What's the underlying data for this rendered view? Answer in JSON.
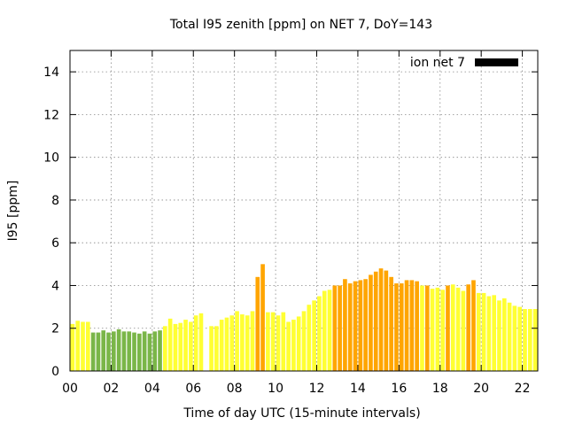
{
  "chart_data": {
    "type": "bar",
    "title": "Total I95 zenith [ppm] on NET 7, DoY=143",
    "xlabel": "Time of day UTC (15-minute intervals)",
    "ylabel": "I95 [ppm]",
    "xlim": [
      0,
      22.75
    ],
    "ylim": [
      0,
      15
    ],
    "x_ticks": [
      0,
      2,
      4,
      6,
      8,
      10,
      12,
      14,
      16,
      18,
      20,
      22
    ],
    "x_tick_labels": [
      "00",
      "02",
      "04",
      "06",
      "08",
      "10",
      "12",
      "14",
      "16",
      "18",
      "20",
      "22"
    ],
    "y_ticks": [
      0,
      2,
      4,
      6,
      8,
      10,
      12,
      14
    ],
    "y_tick_labels": [
      "0",
      "2",
      "4",
      "6",
      "8",
      "10",
      "12",
      "14"
    ],
    "grid": true,
    "legend": {
      "placement": "top-right",
      "entries": [
        {
          "label": "ion net 7",
          "color": "#000000"
        }
      ]
    },
    "bar_interval_hours": 0.25,
    "colors": {
      "green": "#7ab648",
      "yellow": "#ffff33",
      "orange": "#ffa500"
    },
    "series": [
      {
        "name": "ion net 7",
        "x": [
          0.0,
          0.25,
          0.5,
          0.75,
          1.0,
          1.25,
          1.5,
          1.75,
          2.0,
          2.25,
          2.5,
          2.75,
          3.0,
          3.25,
          3.5,
          3.75,
          4.0,
          4.25,
          4.5,
          4.75,
          5.0,
          5.25,
          5.5,
          5.75,
          6.0,
          6.25,
          6.75,
          7.0,
          7.25,
          7.5,
          7.75,
          8.0,
          8.25,
          8.5,
          8.75,
          9.0,
          9.25,
          9.5,
          9.75,
          10.0,
          10.25,
          10.5,
          10.75,
          11.0,
          11.25,
          11.5,
          11.75,
          12.0,
          12.25,
          12.5,
          12.75,
          13.0,
          13.25,
          13.5,
          13.75,
          14.0,
          14.25,
          14.5,
          14.75,
          15.0,
          15.25,
          15.5,
          15.75,
          16.0,
          16.25,
          16.5,
          16.75,
          17.0,
          17.25,
          17.5,
          17.75,
          18.0,
          18.25,
          18.5,
          18.75,
          19.0,
          19.25,
          19.5,
          19.75,
          20.0,
          20.25,
          20.5,
          20.75,
          21.0,
          21.25,
          21.5,
          21.75,
          22.0,
          22.25,
          22.5
        ],
        "values": [
          2.2,
          2.35,
          2.3,
          2.3,
          1.8,
          1.8,
          1.9,
          1.8,
          1.85,
          1.95,
          1.85,
          1.85,
          1.8,
          1.75,
          1.85,
          1.75,
          1.85,
          1.9,
          2.1,
          2.45,
          2.2,
          2.25,
          2.4,
          2.3,
          2.6,
          2.7,
          2.1,
          2.1,
          2.4,
          2.5,
          2.6,
          2.8,
          2.65,
          2.6,
          2.8,
          4.4,
          5.0,
          2.75,
          2.75,
          2.6,
          2.75,
          2.3,
          2.4,
          2.55,
          2.8,
          3.1,
          3.3,
          3.5,
          3.75,
          3.8,
          4.0,
          4.0,
          4.3,
          4.1,
          4.2,
          4.25,
          4.3,
          4.5,
          4.65,
          4.8,
          4.7,
          4.4,
          4.1,
          4.1,
          4.25,
          4.25,
          4.2,
          4.0,
          4.0,
          3.85,
          3.9,
          3.8,
          4.0,
          4.05,
          3.9,
          3.75,
          4.05,
          4.25,
          3.65,
          3.65,
          3.5,
          3.55,
          3.3,
          3.4,
          3.2,
          3.05,
          3.0,
          2.9,
          2.9,
          2.9
        ],
        "colors": [
          "yellow",
          "yellow",
          "yellow",
          "yellow",
          "green",
          "green",
          "green",
          "green",
          "green",
          "green",
          "green",
          "green",
          "green",
          "green",
          "green",
          "green",
          "green",
          "green",
          "yellow",
          "yellow",
          "yellow",
          "yellow",
          "yellow",
          "yellow",
          "yellow",
          "yellow",
          "yellow",
          "yellow",
          "yellow",
          "yellow",
          "yellow",
          "yellow",
          "yellow",
          "yellow",
          "yellow",
          "orange",
          "orange",
          "yellow",
          "yellow",
          "yellow",
          "yellow",
          "yellow",
          "yellow",
          "yellow",
          "yellow",
          "yellow",
          "yellow",
          "yellow",
          "yellow",
          "yellow",
          "orange",
          "orange",
          "orange",
          "orange",
          "orange",
          "orange",
          "orange",
          "orange",
          "orange",
          "orange",
          "orange",
          "orange",
          "orange",
          "orange",
          "orange",
          "orange",
          "orange",
          "yellow",
          "orange",
          "yellow",
          "yellow",
          "yellow",
          "orange",
          "yellow",
          "yellow",
          "yellow",
          "orange",
          "orange",
          "yellow",
          "yellow",
          "yellow",
          "yellow",
          "yellow",
          "yellow",
          "yellow",
          "yellow",
          "yellow",
          "yellow",
          "yellow",
          "yellow"
        ]
      }
    ]
  }
}
